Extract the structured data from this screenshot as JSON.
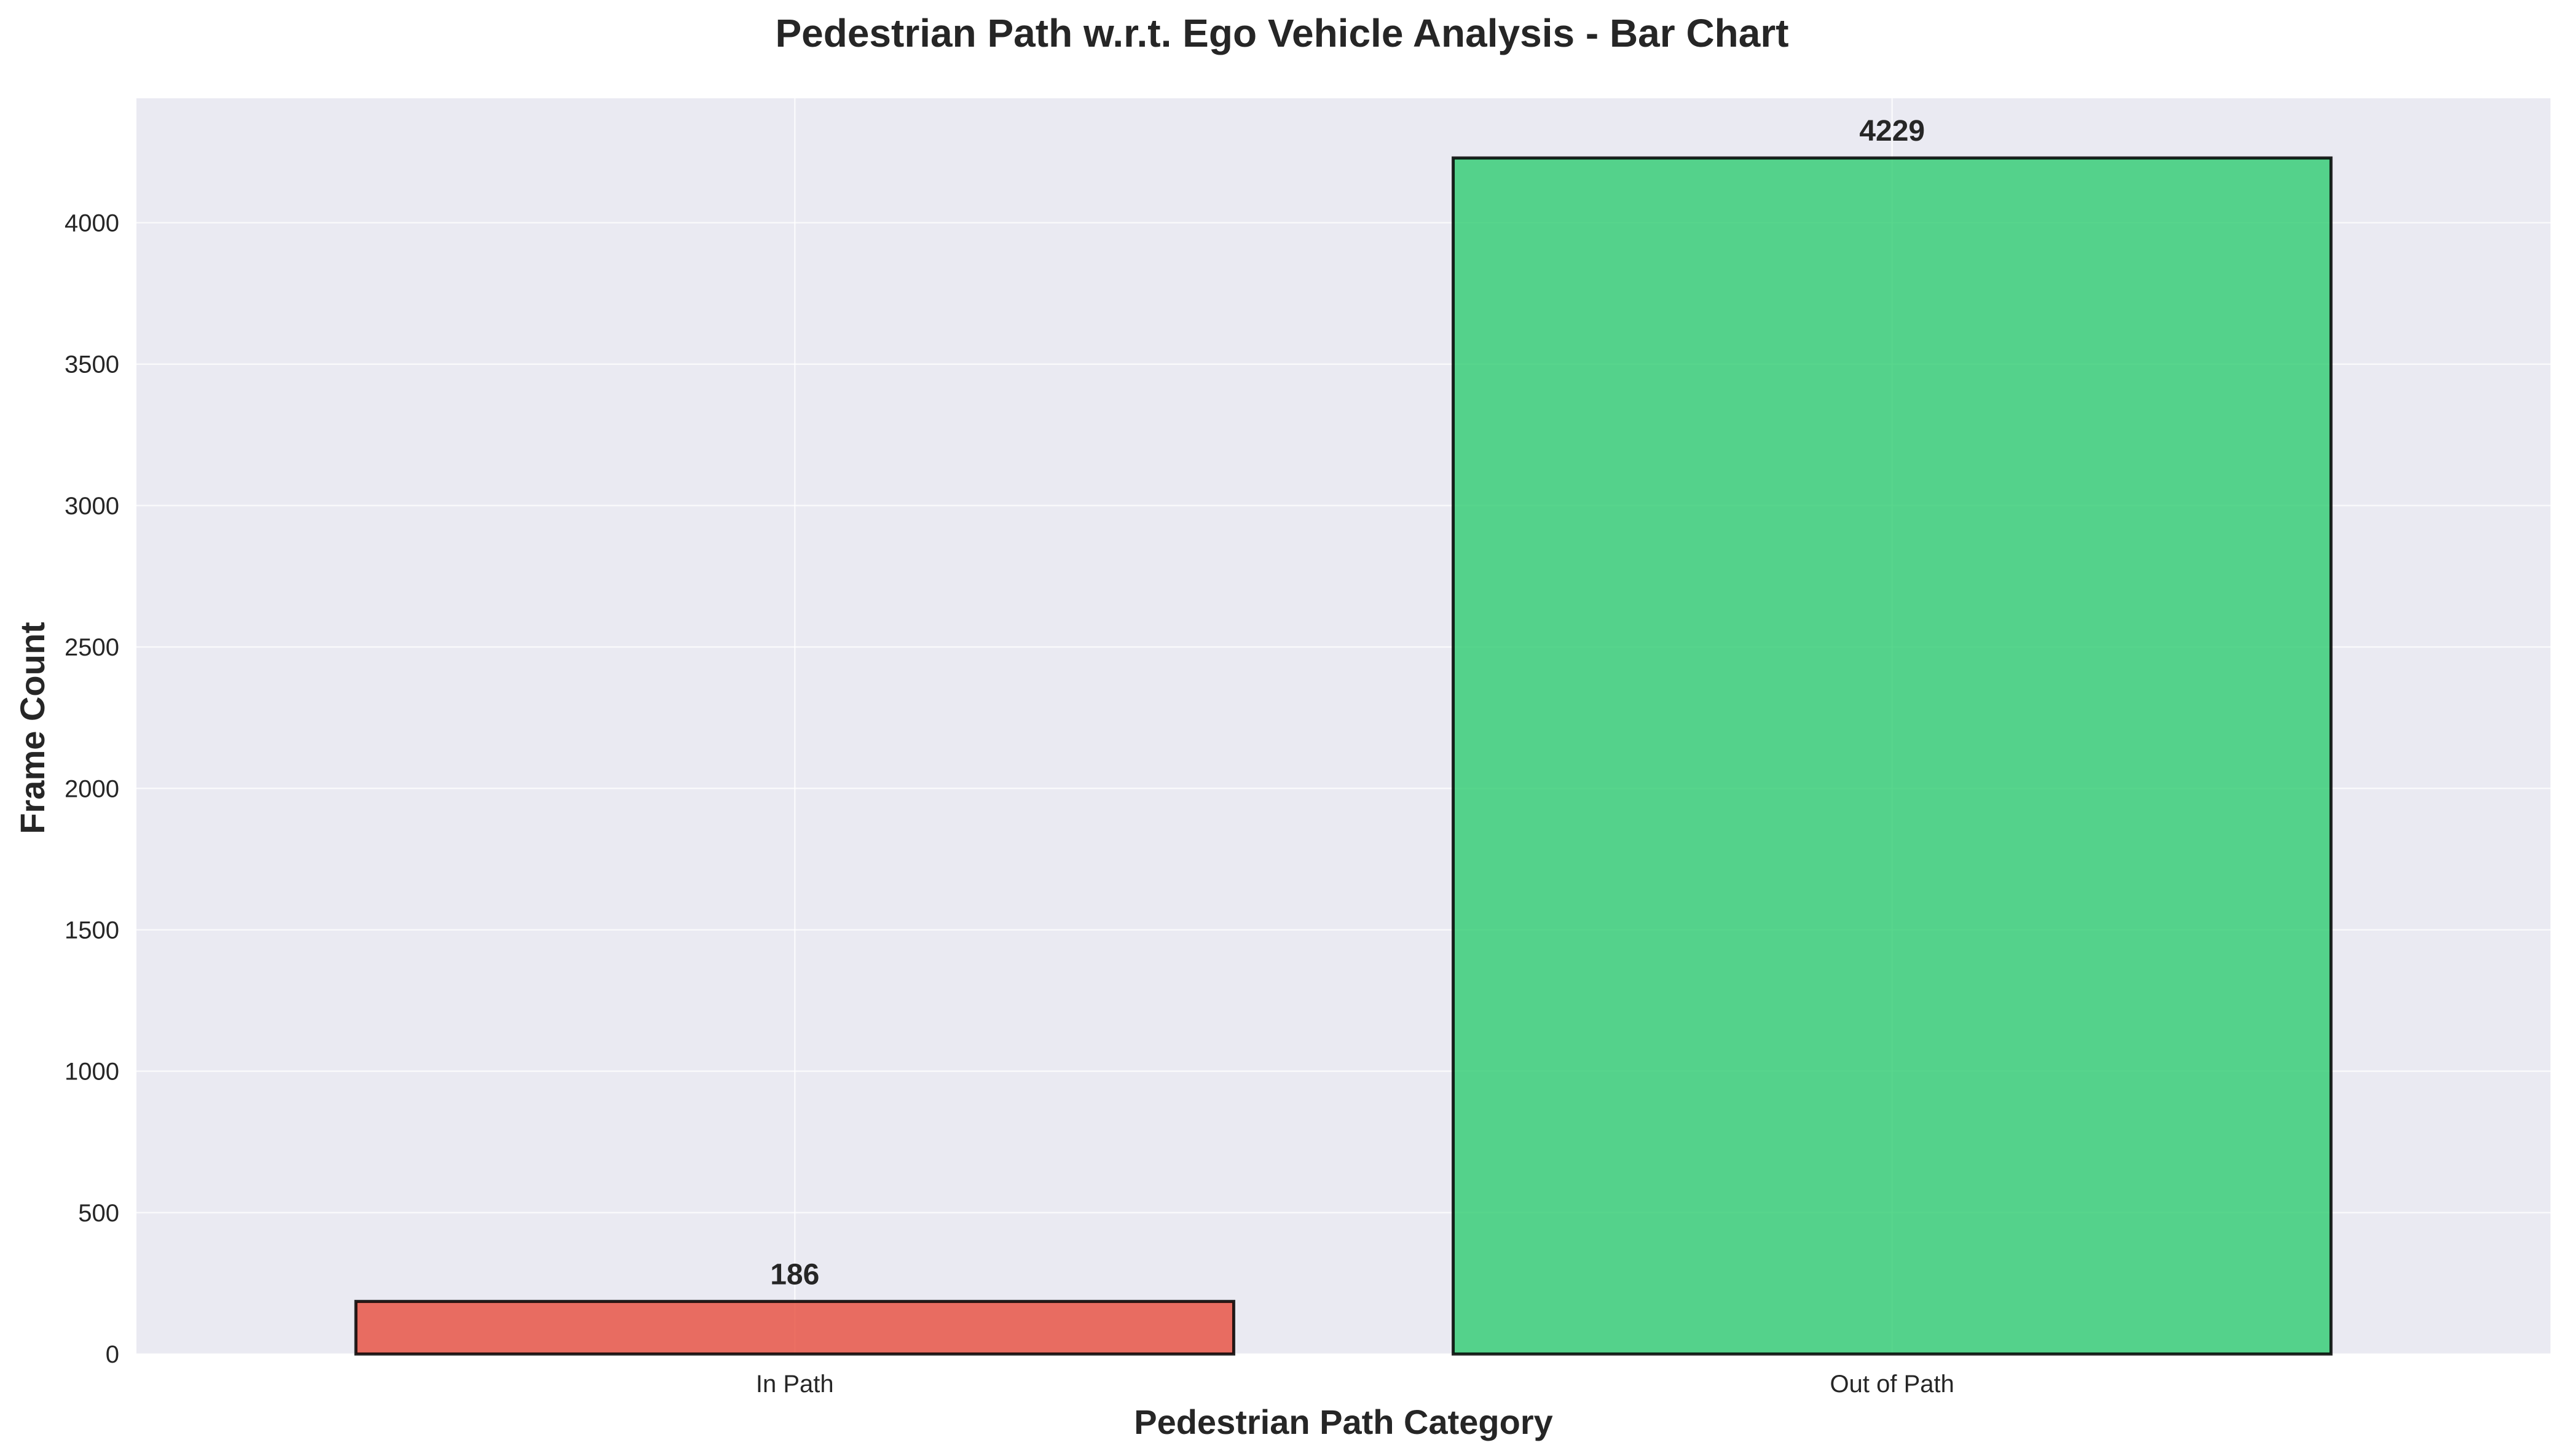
{
  "chart_data": {
    "type": "bar",
    "title": "Pedestrian Path w.r.t. Ego Vehicle Analysis - Bar Chart",
    "xlabel": "Pedestrian Path Category",
    "ylabel": "Frame Count",
    "categories": [
      "In Path",
      "Out of Path"
    ],
    "values": [
      186,
      4229
    ],
    "data_labels": [
      "186",
      "4229"
    ],
    "colors": [
      "#e74c3c",
      "#2ecc71"
    ],
    "bar_alpha": 0.8,
    "bar_edge_color": "#000000",
    "plot_background": "#eaeaf2",
    "grid_color": "#ffffff",
    "grid": true,
    "ylim": [
      0,
      4440
    ],
    "yticks": [
      0,
      500,
      1000,
      1500,
      2000,
      2500,
      3000,
      3500,
      4000
    ],
    "ytick_labels": [
      "0",
      "500",
      "1000",
      "1500",
      "2000",
      "2500",
      "3000",
      "3500",
      "4000"
    ]
  }
}
